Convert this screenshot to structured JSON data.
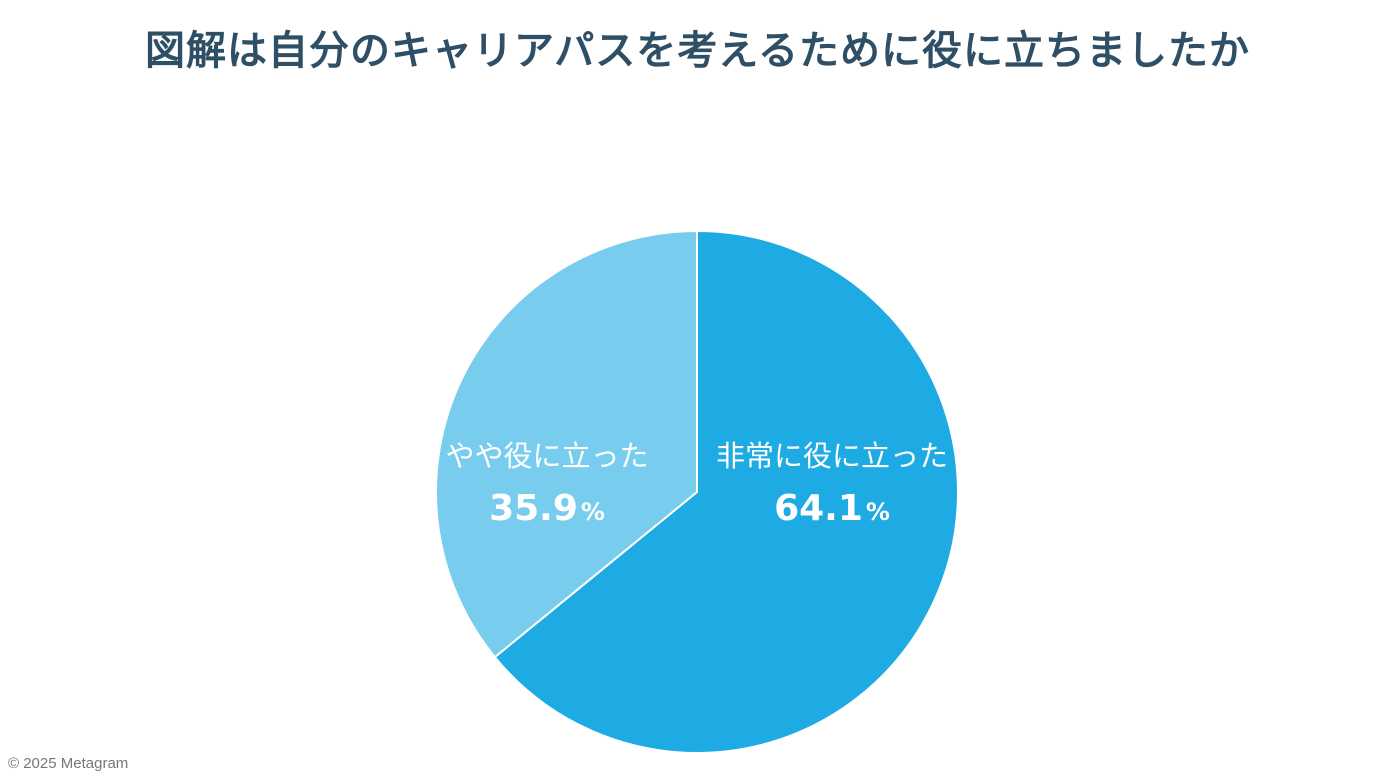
{
  "copyright": "© 2025 Metagram",
  "chart_data": {
    "type": "pie",
    "title": "図解は自分のキャリアパスを考えるために役に立ちましたか",
    "unit": "%",
    "slices": [
      {
        "label": "非常に役に立った",
        "value": 64.1,
        "display_value": "64.1",
        "color": "#1eaae2"
      },
      {
        "label": "やや役に立った",
        "value": 35.9,
        "display_value": "35.9",
        "color": "#78cdee"
      }
    ],
    "start_angle_deg": 0,
    "direction": "clockwise",
    "slice_border_color": "#ffffff"
  }
}
